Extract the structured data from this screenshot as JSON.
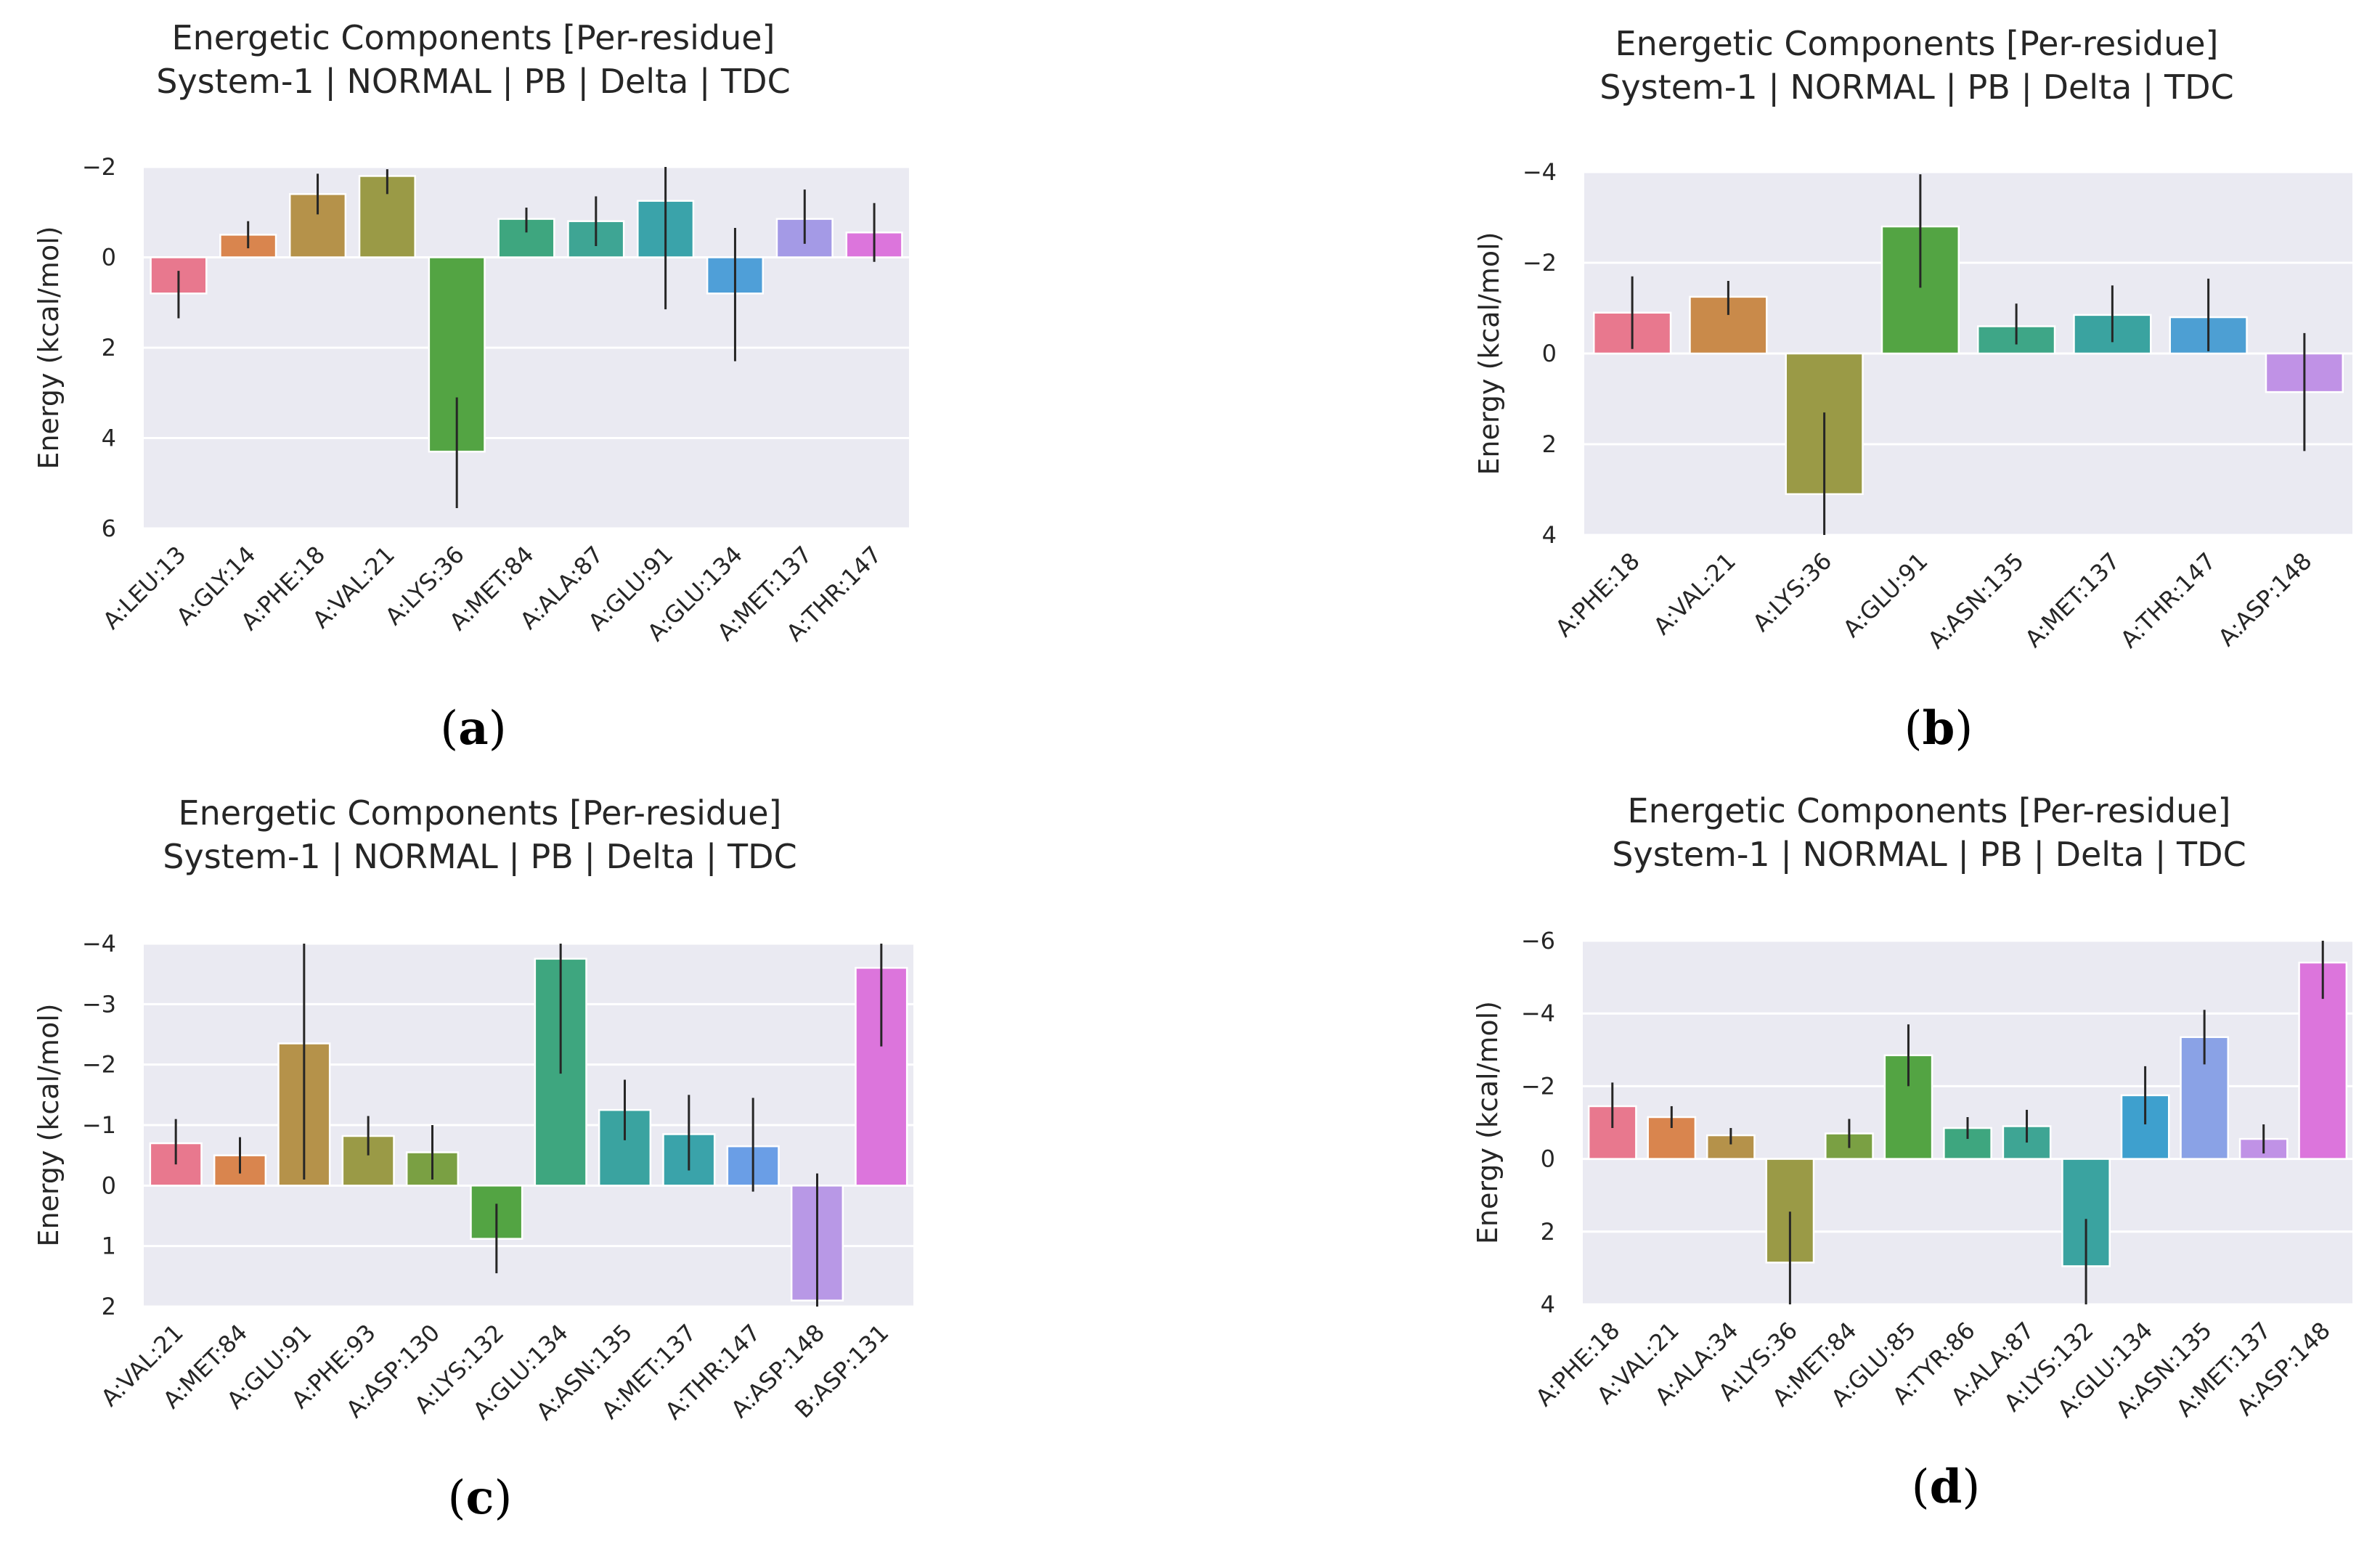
{
  "chart_data": [
    {
      "type": "bar",
      "panel_label": "a",
      "title": [
        "Energetic Components [Per-residue]",
        "System-1 | NORMAL | PB | Delta | TDC"
      ],
      "xlabel": "",
      "ylabel": "Energy (kcal/mol)",
      "ylim": [
        6,
        -2
      ],
      "y_inverted": true,
      "yticks": [
        -2,
        0,
        2,
        4,
        6
      ],
      "ytick_labels": [
        "−2",
        "0",
        "2",
        "4",
        "6"
      ],
      "categories": [
        "A:LEU:13",
        "A:GLY:14",
        "A:PHE:18",
        "A:VAL:21",
        "A:LYS:36",
        "A:MET:84",
        "A:ALA:87",
        "A:GLU:91",
        "A:GLU:134",
        "A:MET:137",
        "A:THR:147"
      ],
      "values": [
        0.8,
        -0.5,
        -1.4,
        -1.8,
        4.3,
        -0.85,
        -0.8,
        -1.25,
        0.8,
        -0.85,
        -0.55
      ],
      "errors": [
        [
          0.3,
          1.35
        ],
        [
          -0.8,
          -0.2
        ],
        [
          -1.85,
          -0.95
        ],
        [
          -1.95,
          -1.4
        ],
        [
          3.1,
          5.55
        ],
        [
          -1.1,
          -0.55
        ],
        [
          -1.35,
          -0.25
        ],
        [
          -2.0,
          1.15
        ],
        [
          -0.65,
          2.3
        ],
        [
          -1.5,
          -0.3
        ],
        [
          -1.2,
          0.1
        ]
      ],
      "colors": [
        "#e8788e",
        "#d9854e",
        "#b5924a",
        "#9a9a46",
        "#53a443",
        "#3ea67f",
        "#3ea594",
        "#3aa3aa",
        "#4f9fd8",
        "#a49ae6",
        "#dc75dc"
      ],
      "grid": true
    },
    {
      "type": "bar",
      "panel_label": "b",
      "title": [
        "Energetic Components [Per-residue]",
        "System-1 | NORMAL | PB | Delta | TDC"
      ],
      "xlabel": "",
      "ylabel": "Energy (kcal/mol)",
      "ylim": [
        4,
        -4
      ],
      "y_inverted": true,
      "yticks": [
        -4,
        -2,
        0,
        2,
        4
      ],
      "ytick_labels": [
        "−4",
        "−2",
        "0",
        "2",
        "4"
      ],
      "categories": [
        "A:PHE:18",
        "A:VAL:21",
        "A:LYS:36",
        "A:GLU:91",
        "A:ASN:135",
        "A:MET:137",
        "A:THR:147",
        "A:ASP:148"
      ],
      "values": [
        -0.9,
        -1.25,
        3.1,
        -2.8,
        -0.6,
        -0.85,
        -0.8,
        0.85
      ],
      "errors": [
        [
          -1.7,
          -0.1
        ],
        [
          -1.6,
          -0.85
        ],
        [
          1.3,
          4.0
        ],
        [
          -3.95,
          -1.45
        ],
        [
          -1.1,
          -0.2
        ],
        [
          -1.5,
          -0.25
        ],
        [
          -1.65,
          -0.05
        ],
        [
          -0.45,
          2.15
        ]
      ],
      "colors": [
        "#e8788e",
        "#c98a4a",
        "#9a9a46",
        "#53a443",
        "#3ea687",
        "#3aa3a0",
        "#4d9fd3",
        "#c092e6"
      ],
      "grid": true
    },
    {
      "type": "bar",
      "panel_label": "c",
      "title": [
        "Energetic Components [Per-residue]",
        "System-1 | NORMAL | PB | Delta | TDC"
      ],
      "xlabel": "",
      "ylabel": "Energy (kcal/mol)",
      "ylim": [
        2,
        -4
      ],
      "y_inverted": true,
      "yticks": [
        -4,
        -3,
        -2,
        -1,
        0,
        1,
        2
      ],
      "ytick_labels": [
        "−4",
        "−3",
        "−2",
        "−1",
        "0",
        "1",
        "2"
      ],
      "categories": [
        "A:VAL:21",
        "A:MET:84",
        "A:GLU:91",
        "A:PHE:93",
        "A:ASP:130",
        "A:LYS:132",
        "A:GLU:134",
        "A:ASN:135",
        "A:MET:137",
        "A:THR:147",
        "A:ASP:148",
        "B:ASP:131"
      ],
      "values": [
        -0.7,
        -0.5,
        -2.35,
        -0.82,
        -0.55,
        0.88,
        -3.75,
        -1.25,
        -0.85,
        -0.65,
        1.9,
        -3.6
      ],
      "errors": [
        [
          -1.1,
          -0.35
        ],
        [
          -0.8,
          -0.2
        ],
        [
          -4.0,
          -0.1
        ],
        [
          -1.15,
          -0.5
        ],
        [
          -1.0,
          -0.1
        ],
        [
          0.3,
          1.45
        ],
        [
          -4.0,
          -1.85
        ],
        [
          -1.75,
          -0.75
        ],
        [
          -1.5,
          -0.25
        ],
        [
          -1.45,
          0.1
        ],
        [
          -0.2,
          2.0
        ],
        [
          -4.0,
          -2.3
        ]
      ],
      "colors": [
        "#e8788e",
        "#d9854e",
        "#b5924a",
        "#9a9a46",
        "#7aa043",
        "#53a443",
        "#3ea67f",
        "#3aa3a0",
        "#3aa3aa",
        "#6a9ee6",
        "#b898e6",
        "#dc75dc"
      ],
      "grid": true
    },
    {
      "type": "bar",
      "panel_label": "d",
      "title": [
        "Energetic Components [Per-residue]",
        "System-1 | NORMAL | PB | Delta | TDC"
      ],
      "xlabel": "",
      "ylabel": "Energy (kcal/mol)",
      "ylim": [
        4,
        -6
      ],
      "y_inverted": true,
      "yticks": [
        -6,
        -4,
        -2,
        0,
        2,
        4
      ],
      "ytick_labels": [
        "−6",
        "−4",
        "−2",
        "0",
        "2",
        "4"
      ],
      "categories": [
        "A:PHE:18",
        "A:VAL:21",
        "A:ALA:34",
        "A:LYS:36",
        "A:MET:84",
        "A:GLU:85",
        "A:TYR:86",
        "A:ALA:87",
        "A:LYS:132",
        "A:GLU:134",
        "A:ASN:135",
        "A:MET:137",
        "A:ASP:148"
      ],
      "values": [
        -1.45,
        -1.15,
        -0.65,
        2.85,
        -0.7,
        -2.85,
        -0.85,
        -0.9,
        2.95,
        -1.75,
        -3.35,
        -0.55,
        -5.4
      ],
      "errors": [
        [
          -2.1,
          -0.85
        ],
        [
          -1.45,
          -0.85
        ],
        [
          -0.85,
          -0.4
        ],
        [
          1.45,
          4.0
        ],
        [
          -1.1,
          -0.3
        ],
        [
          -3.7,
          -2.0
        ],
        [
          -1.15,
          -0.55
        ],
        [
          -1.35,
          -0.45
        ],
        [
          1.65,
          4.0
        ],
        [
          -2.55,
          -0.95
        ],
        [
          -4.1,
          -2.6
        ],
        [
          -0.95,
          -0.15
        ],
        [
          -6.0,
          -4.4
        ]
      ],
      "colors": [
        "#e8788e",
        "#d9854e",
        "#b5924a",
        "#9a9a46",
        "#7aa043",
        "#53a443",
        "#3ea67f",
        "#3ea594",
        "#3aa3a0",
        "#3ea0ce",
        "#8aa2e6",
        "#c092e6",
        "#dc75dc"
      ],
      "grid": true
    }
  ]
}
